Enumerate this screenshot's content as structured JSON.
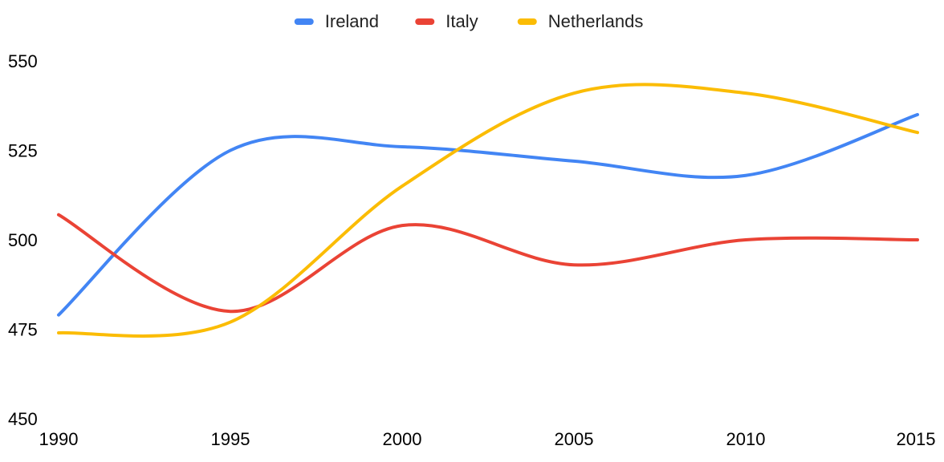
{
  "chart_data": {
    "type": "line",
    "title": "",
    "xlabel": "",
    "ylabel": "",
    "x": [
      1990,
      1995,
      2000,
      2005,
      2010,
      2015
    ],
    "xticks": [
      "1990",
      "1995",
      "2000",
      "2005",
      "2010",
      "2015"
    ],
    "yticks": [
      "450",
      "475",
      "500",
      "525",
      "550"
    ],
    "xlim": [
      1990,
      2015
    ],
    "ylim": [
      450,
      550
    ],
    "grid": false,
    "legend_position": "top",
    "series": [
      {
        "name": "Ireland",
        "color": "#4285f4",
        "values": [
          479,
          525,
          526,
          522,
          518,
          535
        ]
      },
      {
        "name": "Italy",
        "color": "#ea4335",
        "values": [
          507,
          480,
          504,
          493,
          500,
          500
        ]
      },
      {
        "name": "Netherlands",
        "color": "#fbbc04",
        "values": [
          474,
          477,
          515,
          541,
          541,
          530
        ]
      }
    ]
  }
}
